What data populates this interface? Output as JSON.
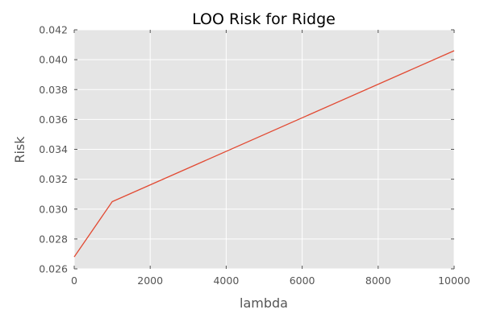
{
  "chart_data": {
    "type": "line",
    "title": "LOO Risk for Ridge",
    "xlabel": "lambda",
    "ylabel": "Risk",
    "xlim": [
      0,
      10000
    ],
    "ylim": [
      0.026,
      0.042
    ],
    "xticks": [
      0,
      2000,
      4000,
      6000,
      8000,
      10000
    ],
    "xtick_labels": [
      "0",
      "2000",
      "4000",
      "6000",
      "8000",
      "10000"
    ],
    "yticks": [
      0.026,
      0.028,
      0.03,
      0.032,
      0.034,
      0.036,
      0.038,
      0.04,
      0.042
    ],
    "ytick_labels": [
      "0.026",
      "0.028",
      "0.030",
      "0.032",
      "0.034",
      "0.036",
      "0.038",
      "0.040",
      "0.042"
    ],
    "grid": true,
    "background": "#e5e5e5",
    "series": [
      {
        "color": "#e24a33",
        "x": [
          0,
          1000,
          10000
        ],
        "y": [
          0.0268,
          0.0305,
          0.0406
        ]
      }
    ]
  }
}
